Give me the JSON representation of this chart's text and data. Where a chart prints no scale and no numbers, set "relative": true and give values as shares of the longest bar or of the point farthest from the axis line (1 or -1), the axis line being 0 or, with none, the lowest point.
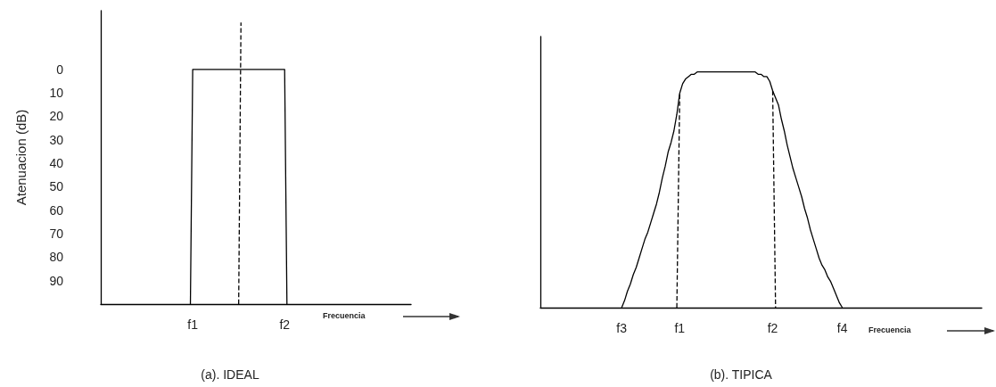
{
  "chart_data": [
    {
      "type": "line",
      "title": "(a). IDEAL",
      "xlabel": "Frecuencia",
      "ylabel": "Atenuacion (dB)",
      "ylim": [
        100,
        -25
      ],
      "yticks": [
        0,
        10,
        20,
        30,
        40,
        50,
        60,
        70,
        80,
        90
      ],
      "marker": "none",
      "categories": [
        null,
        null,
        null,
        null,
        null,
        null,
        null,
        null,
        null,
        null,
        null,
        null,
        null,
        null,
        null,
        null,
        null,
        null,
        null,
        null,
        null,
        null,
        null,
        null,
        null,
        null,
        null,
        null,
        null,
        null,
        null,
        null,
        null,
        null,
        null,
        null,
        null,
        null,
        null,
        null,
        "f1",
        null,
        null,
        null,
        null,
        null,
        null,
        null,
        null,
        null,
        null,
        null,
        null,
        null,
        null,
        null,
        null,
        null,
        null,
        null,
        null,
        null,
        null,
        null,
        null,
        null,
        null,
        null,
        null,
        null,
        null,
        null,
        null,
        null,
        null,
        null,
        null,
        null,
        null,
        null,
        "f2",
        null,
        null,
        null,
        null,
        null,
        null,
        null,
        null,
        null,
        null,
        null,
        null,
        null,
        null,
        null,
        null,
        null,
        null,
        null,
        null,
        null,
        null,
        null,
        null,
        null,
        null,
        null,
        null,
        null,
        null,
        null,
        null,
        null,
        null,
        null,
        null,
        null,
        null,
        null,
        null,
        null,
        null,
        null,
        null,
        null,
        null,
        null,
        null,
        null,
        null,
        null,
        null,
        null,
        null,
        null
      ],
      "series": [
        {
          "color": "#000000",
          "values": [
            null,
            null,
            null,
            null,
            null,
            null,
            null,
            null,
            null,
            null,
            null,
            null,
            null,
            null,
            null,
            null,
            null,
            null,
            null,
            null,
            null,
            null,
            null,
            null,
            null,
            null,
            null,
            null,
            null,
            null,
            null,
            null,
            null,
            null,
            null,
            null,
            null,
            null,
            null,
            100,
            0,
            0,
            0,
            0,
            0,
            0,
            0,
            0,
            0,
            0,
            0,
            0,
            0,
            0,
            0,
            0,
            0,
            0,
            0,
            0,
            0,
            0,
            0,
            0,
            0,
            0,
            0,
            0,
            0,
            0,
            0,
            0,
            0,
            0,
            0,
            0,
            0,
            0,
            0,
            0,
            0,
            100,
            null,
            null,
            null,
            null,
            null,
            null,
            null,
            null,
            null,
            null,
            null,
            null,
            null,
            null,
            null,
            null,
            null,
            null,
            null,
            null,
            null,
            null,
            null,
            null,
            null,
            null,
            null,
            null,
            null,
            null,
            null,
            null,
            null,
            null,
            null,
            null,
            null,
            null,
            null,
            null,
            null,
            null,
            null,
            null,
            null,
            null,
            null,
            null,
            null,
            null,
            null,
            null,
            null,
            null
          ]
        },
        {
          "color": "#000000",
          "line_style": "dashed",
          "values": [
            null,
            null,
            null,
            null,
            null,
            null,
            null,
            null,
            null,
            null,
            null,
            null,
            null,
            null,
            null,
            null,
            null,
            null,
            null,
            null,
            null,
            null,
            null,
            null,
            null,
            null,
            null,
            null,
            null,
            null,
            null,
            null,
            null,
            null,
            null,
            null,
            null,
            null,
            null,
            null,
            null,
            null,
            null,
            null,
            null,
            null,
            null,
            null,
            null,
            null,
            null,
            null,
            null,
            null,
            null,
            null,
            null,
            null,
            null,
            null,
            100,
            -20,
            null,
            null,
            null,
            null,
            null,
            null,
            null,
            null,
            null,
            null,
            null,
            null,
            null,
            null,
            null,
            null,
            null,
            null,
            null,
            null,
            null,
            null,
            null,
            null,
            null,
            null,
            null,
            null,
            null,
            null,
            null,
            null,
            null,
            null,
            null,
            null,
            null,
            null,
            null,
            null,
            null,
            null,
            null,
            null,
            null,
            null,
            null,
            null,
            null,
            null,
            null,
            null,
            null,
            null,
            null,
            null,
            null,
            null,
            null,
            null,
            null,
            null,
            null,
            null,
            null,
            null,
            null,
            null,
            null,
            null,
            null,
            null,
            null,
            null
          ]
        }
      ]
    },
    {
      "type": "line",
      "title": "(b). TIPICA",
      "xlabel": "Frecuencia",
      "relative": true,
      "tick_labels": "x",
      "marker": "none",
      "categories": [
        null,
        null,
        null,
        null,
        null,
        null,
        null,
        null,
        null,
        null,
        null,
        null,
        null,
        null,
        null,
        null,
        null,
        null,
        null,
        null,
        null,
        null,
        null,
        null,
        null,
        null,
        null,
        null,
        "f3",
        null,
        null,
        null,
        null,
        null,
        null,
        null,
        null,
        null,
        null,
        null,
        null,
        null,
        null,
        null,
        null,
        null,
        null,
        null,
        "f1",
        null,
        null,
        null,
        null,
        null,
        null,
        null,
        null,
        null,
        null,
        null,
        null,
        null,
        null,
        null,
        null,
        null,
        null,
        null,
        null,
        null,
        null,
        null,
        null,
        null,
        null,
        null,
        null,
        null,
        null,
        null,
        "f2",
        null,
        null,
        null,
        null,
        null,
        null,
        null,
        null,
        null,
        null,
        null,
        null,
        null,
        null,
        null,
        null,
        null,
        null,
        null,
        null,
        null,
        null,
        null,
        "f4",
        null,
        null,
        null,
        null,
        null,
        null,
        null,
        null,
        null,
        null,
        null,
        null,
        null,
        null,
        null,
        null,
        null,
        null,
        null,
        null,
        null,
        null,
        null,
        null,
        null,
        null,
        null,
        null,
        null,
        null,
        null,
        null,
        null,
        null,
        null,
        null,
        null,
        null,
        null,
        null,
        null,
        null,
        null,
        null,
        null,
        null,
        null,
        null
      ],
      "series": [
        {
          "color": "#000000",
          "values": [
            null,
            null,
            null,
            null,
            null,
            null,
            null,
            null,
            null,
            null,
            null,
            null,
            null,
            null,
            null,
            null,
            null,
            null,
            null,
            null,
            null,
            null,
            null,
            null,
            null,
            null,
            null,
            null,
            0,
            0.03,
            0.07,
            0.1,
            0.14,
            0.17,
            0.21,
            0.25,
            0.29,
            0.32,
            0.36,
            0.4,
            0.44,
            0.49,
            0.55,
            0.6,
            0.66,
            0.7,
            0.75,
            0.82,
            0.91,
            0.95,
            0.97,
            0.98,
            0.99,
            0.99,
            1,
            1,
            1,
            1,
            1,
            1,
            1,
            1,
            1,
            1,
            1,
            1,
            1,
            1,
            1,
            1,
            1,
            1,
            1,
            1,
            1,
            0.99,
            0.99,
            0.98,
            0.98,
            0.96,
            0.92,
            0.89,
            0.86,
            0.8,
            0.75,
            0.69,
            0.64,
            0.59,
            0.55,
            0.51,
            0.47,
            0.42,
            0.38,
            0.33,
            0.29,
            0.25,
            0.21,
            0.18,
            0.16,
            0.13,
            0.11,
            0.08,
            0.05,
            0.02,
            0,
            null,
            null,
            null,
            null,
            null,
            null,
            null,
            null,
            null,
            null,
            null,
            null,
            null,
            null,
            null,
            null,
            null,
            null,
            null,
            null,
            null,
            null,
            null,
            null,
            null,
            null,
            null,
            null,
            null,
            null,
            null,
            null,
            null,
            null,
            null,
            null,
            null,
            null,
            null,
            null,
            null,
            null,
            null,
            null,
            null,
            null,
            null,
            null
          ]
        },
        {
          "color": "#000000",
          "line_style": "dashed",
          "values": [
            null,
            null,
            null,
            null,
            null,
            null,
            null,
            null,
            null,
            null,
            null,
            null,
            null,
            null,
            null,
            null,
            null,
            null,
            null,
            null,
            null,
            null,
            null,
            null,
            null,
            null,
            null,
            null,
            null,
            null,
            null,
            null,
            null,
            null,
            null,
            null,
            null,
            null,
            null,
            null,
            null,
            null,
            null,
            null,
            null,
            null,
            null,
            0,
            0.91,
            null,
            null,
            null,
            null,
            null,
            null,
            null,
            null,
            null,
            null,
            null,
            null,
            null,
            null,
            null,
            null,
            null,
            null,
            null,
            null,
            null,
            null,
            null,
            null,
            null,
            null,
            null,
            null,
            null,
            null,
            null,
            null,
            null,
            null,
            null,
            null,
            null,
            null,
            null,
            null,
            null,
            null,
            null,
            null,
            null,
            null,
            null,
            null,
            null,
            null,
            null,
            null,
            null,
            null,
            null,
            null,
            null,
            null,
            null,
            null,
            null,
            null,
            null,
            null,
            null,
            null,
            null,
            null,
            null,
            null,
            null,
            null,
            null,
            null,
            null,
            null,
            null,
            null,
            null,
            null,
            null,
            null,
            null,
            null,
            null,
            null,
            null,
            null,
            null,
            null,
            null,
            null,
            null,
            null,
            null,
            null,
            null,
            null,
            null,
            null,
            null,
            null,
            null,
            null
          ]
        },
        {
          "color": "#000000",
          "line_style": "dashed",
          "values": [
            null,
            null,
            null,
            null,
            null,
            null,
            null,
            null,
            null,
            null,
            null,
            null,
            null,
            null,
            null,
            null,
            null,
            null,
            null,
            null,
            null,
            null,
            null,
            null,
            null,
            null,
            null,
            null,
            null,
            null,
            null,
            null,
            null,
            null,
            null,
            null,
            null,
            null,
            null,
            null,
            null,
            null,
            null,
            null,
            null,
            null,
            null,
            null,
            null,
            null,
            null,
            null,
            null,
            null,
            null,
            null,
            null,
            null,
            null,
            null,
            null,
            null,
            null,
            null,
            null,
            null,
            null,
            null,
            null,
            null,
            null,
            null,
            null,
            null,
            null,
            null,
            null,
            null,
            null,
            null,
            0.92,
            0,
            null,
            null,
            null,
            null,
            null,
            null,
            null,
            null,
            null,
            null,
            null,
            null,
            null,
            null,
            null,
            null,
            null,
            null,
            null,
            null,
            null,
            null,
            null,
            null,
            null,
            null,
            null,
            null,
            null,
            null,
            null,
            null,
            null,
            null,
            null,
            null,
            null,
            null,
            null,
            null,
            null,
            null,
            null,
            null,
            null,
            null,
            null,
            null,
            null,
            null,
            null,
            null,
            null,
            null,
            null,
            null,
            null,
            null,
            null,
            null,
            null,
            null,
            null,
            null,
            null,
            null,
            null,
            null,
            null,
            null,
            null
          ]
        }
      ]
    }
  ]
}
